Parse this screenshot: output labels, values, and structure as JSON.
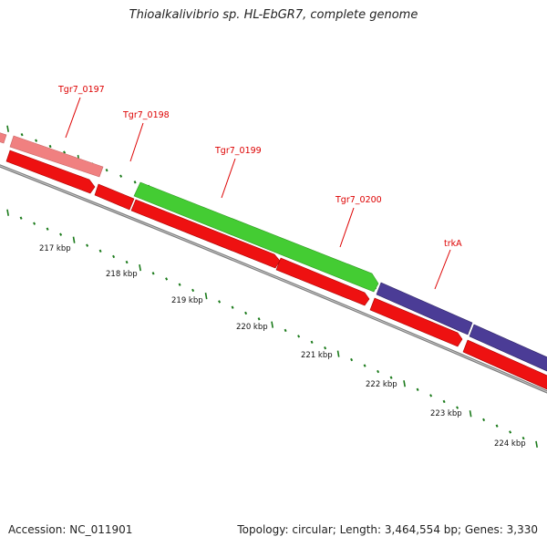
{
  "title": "Thioalkalivibrio sp. HL-EbGR7, complete genome",
  "footer": {
    "accession": "Accession: NC_011901",
    "summary": "Topology: circular; Length: 3,464,554 bp; Genes: 3,330"
  },
  "colors": {
    "cds": "#ee1111",
    "gene_pink": "#f08080",
    "gene_green": "#44cc33",
    "gene_purple": "#4b3c96",
    "backbone": "#8a8a8a",
    "ticks": "#1a7a1a",
    "label": "#dd0000"
  },
  "genes": [
    {
      "label": "Tgr7_0197",
      "color": "pink"
    },
    {
      "label": "Tgr7_0198",
      "color": "red"
    },
    {
      "label": "Tgr7_0199",
      "color": "green"
    },
    {
      "label": "Tgr7_0200",
      "color": "red"
    },
    {
      "label": "trkA",
      "color": "purple"
    }
  ],
  "scale_labels": [
    "217 kbp",
    "218 kbp",
    "219 kbp",
    "220 kbp",
    "221 kbp",
    "222 kbp",
    "223 kbp",
    "224 kbp"
  ]
}
